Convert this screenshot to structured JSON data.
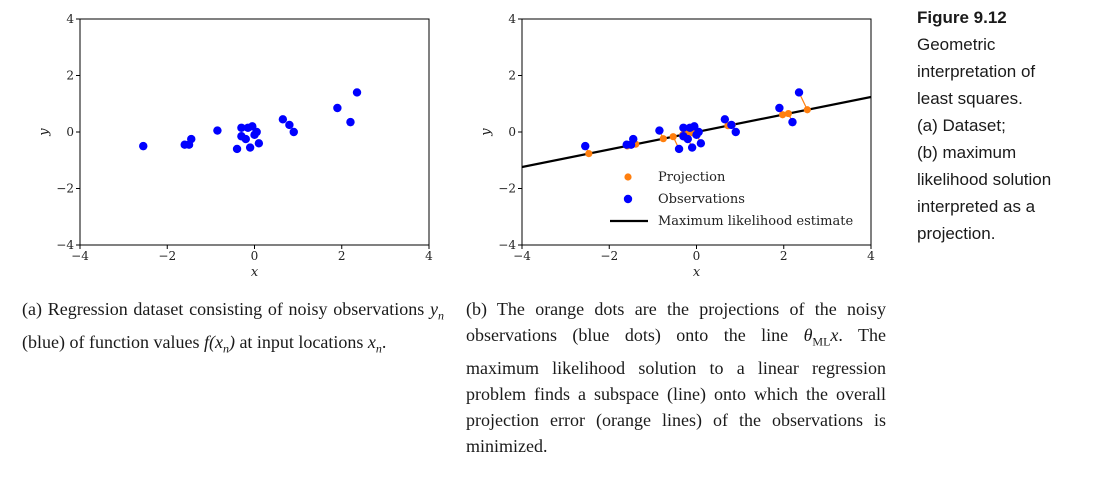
{
  "colors": {
    "observations": "#0000ff",
    "projection": "#ff7f0e",
    "line": "#000000",
    "axis": "#000000"
  },
  "chart_data": [
    {
      "type": "scatter",
      "panel": "a",
      "xlabel": "x",
      "ylabel": "y",
      "xlim": [
        -4,
        4
      ],
      "ylim": [
        -4,
        4
      ],
      "xticks": [
        -4,
        -2,
        0,
        2,
        4
      ],
      "yticks": [
        -4,
        -2,
        0,
        2,
        4
      ],
      "grid": false,
      "series": [
        {
          "name": "Observations",
          "points": [
            [
              -2.55,
              -0.5
            ],
            [
              -1.6,
              -0.45
            ],
            [
              -1.5,
              -0.45
            ],
            [
              -1.45,
              -0.25
            ],
            [
              -0.85,
              0.05
            ],
            [
              -0.4,
              -0.6
            ],
            [
              -0.3,
              0.15
            ],
            [
              -0.3,
              -0.15
            ],
            [
              -0.2,
              -0.25
            ],
            [
              -0.15,
              0.15
            ],
            [
              -0.1,
              -0.55
            ],
            [
              -0.05,
              0.2
            ],
            [
              0.0,
              -0.1
            ],
            [
              0.05,
              0.0
            ],
            [
              0.1,
              -0.4
            ],
            [
              0.65,
              0.45
            ],
            [
              0.8,
              0.25
            ],
            [
              0.9,
              0.0
            ],
            [
              1.9,
              0.85
            ],
            [
              2.2,
              0.35
            ],
            [
              2.35,
              1.4
            ]
          ]
        }
      ]
    },
    {
      "type": "scatter",
      "panel": "b",
      "xlabel": "x",
      "ylabel": "y",
      "xlim": [
        -4,
        4
      ],
      "ylim": [
        -4,
        4
      ],
      "xticks": [
        -4,
        -2,
        0,
        2,
        4
      ],
      "yticks": [
        -4,
        -2,
        0,
        2,
        4
      ],
      "grid": false,
      "legend_position": "lower-center",
      "line": {
        "name": "Maximum likelihood estimate",
        "slope": 0.31
      },
      "series": [
        {
          "name": "Projection",
          "points_on_line": true
        },
        {
          "name": "Observations",
          "points": [
            [
              -2.55,
              -0.5
            ],
            [
              -1.6,
              -0.45
            ],
            [
              -1.5,
              -0.45
            ],
            [
              -1.45,
              -0.25
            ],
            [
              -0.85,
              0.05
            ],
            [
              -0.4,
              -0.6
            ],
            [
              -0.3,
              0.15
            ],
            [
              -0.3,
              -0.15
            ],
            [
              -0.2,
              -0.25
            ],
            [
              -0.15,
              0.15
            ],
            [
              -0.1,
              -0.55
            ],
            [
              -0.05,
              0.2
            ],
            [
              0.0,
              -0.1
            ],
            [
              0.05,
              0.0
            ],
            [
              0.1,
              -0.4
            ],
            [
              0.65,
              0.45
            ],
            [
              0.8,
              0.25
            ],
            [
              0.9,
              0.0
            ],
            [
              1.9,
              0.85
            ],
            [
              2.2,
              0.35
            ],
            [
              2.35,
              1.4
            ]
          ]
        }
      ],
      "legend": [
        "Projection",
        "Observations",
        "Maximum likelihood estimate"
      ]
    }
  ],
  "captions": {
    "a": {
      "prefix": "(a) Regression dataset consisting of noisy observations ",
      "yn": "yn",
      "mid": " (blue) of function values ",
      "fxn": "f(xn)",
      "mid2": " at input locations ",
      "xn": "xn",
      "end": "."
    },
    "b": {
      "prefix": "(b) The orange dots are the projections of the noisy observations (blue dots) onto the line ",
      "theta": "θMLx",
      "end": ". The maximum likelihood solution to a linear regression problem finds a subspace (line) onto which the overall projection error (orange lines) of the observations is minimized."
    }
  },
  "side_caption": {
    "figure": "Figure 9.12",
    "lines": [
      "Geometric",
      "interpretation of",
      "least squares.",
      "(a) Dataset;",
      "(b) maximum",
      "likelihood solution",
      "interpreted as a",
      "projection."
    ]
  }
}
